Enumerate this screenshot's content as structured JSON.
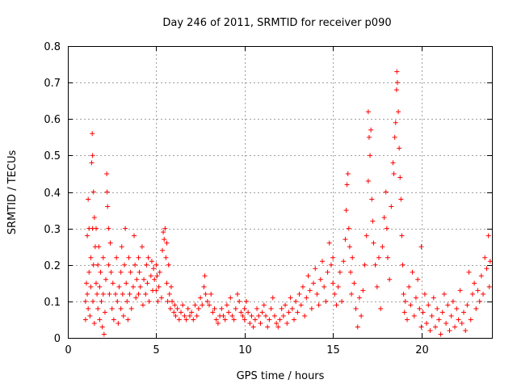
{
  "chart_data": {
    "type": "scatter",
    "title": "Day 246 of 2011, SRMTID for receiver p090",
    "xlabel": "GPS time / hours",
    "ylabel": "SRMTID / TECUs",
    "xlim": [
      0,
      24
    ],
    "ylim": [
      0,
      0.8
    ],
    "xticks": [
      "0",
      "5",
      "10",
      "15",
      "20"
    ],
    "yticks": [
      "0",
      "0.1",
      "0.2",
      "0.3",
      "0.4",
      "0.5",
      "0.6",
      "0.7",
      "0.8"
    ],
    "xtick_values": [
      0,
      5,
      10,
      15,
      20
    ],
    "ytick_values": [
      0,
      0.1,
      0.2,
      0.3,
      0.4,
      0.5,
      0.6,
      0.7,
      0.8
    ],
    "grid": true,
    "marker": "+",
    "color": "#ff0000",
    "series": [
      {
        "name": "SRMTID",
        "points": [
          [
            1.0,
            0.05
          ],
          [
            1.0,
            0.1
          ],
          [
            1.05,
            0.15
          ],
          [
            1.1,
            0.28
          ],
          [
            1.1,
            0.12
          ],
          [
            1.15,
            0.38
          ],
          [
            1.15,
            0.08
          ],
          [
            1.2,
            0.3
          ],
          [
            1.2,
            0.18
          ],
          [
            1.25,
            0.06
          ],
          [
            1.3,
            0.22
          ],
          [
            1.3,
            0.14
          ],
          [
            1.35,
            0.48
          ],
          [
            1.38,
            0.56
          ],
          [
            1.4,
            0.5
          ],
          [
            1.4,
            0.3
          ],
          [
            1.42,
            0.1
          ],
          [
            1.45,
            0.4
          ],
          [
            1.45,
            0.2
          ],
          [
            1.5,
            0.33
          ],
          [
            1.5,
            0.04
          ],
          [
            1.55,
            0.25
          ],
          [
            1.6,
            0.3
          ],
          [
            1.6,
            0.15
          ],
          [
            1.65,
            0.12
          ],
          [
            1.7,
            0.2
          ],
          [
            1.7,
            0.08
          ],
          [
            1.75,
            0.25
          ],
          [
            1.8,
            0.14
          ],
          [
            1.8,
            0.05
          ],
          [
            1.85,
            0.18
          ],
          [
            1.9,
            0.1
          ],
          [
            1.95,
            0.03
          ],
          [
            2.0,
            0.12
          ],
          [
            2.0,
            0.22
          ],
          [
            2.05,
            0.01
          ],
          [
            2.1,
            0.07
          ],
          [
            2.15,
            0.16
          ],
          [
            2.2,
            0.45
          ],
          [
            2.22,
            0.4
          ],
          [
            2.25,
            0.36
          ],
          [
            2.3,
            0.3
          ],
          [
            2.3,
            0.2
          ],
          [
            2.35,
            0.12
          ],
          [
            2.4,
            0.26
          ],
          [
            2.45,
            0.18
          ],
          [
            2.5,
            0.08
          ],
          [
            2.55,
            0.15
          ],
          [
            2.6,
            0.05
          ],
          [
            2.7,
            0.12
          ],
          [
            2.75,
            0.22
          ],
          [
            2.8,
            0.1
          ],
          [
            2.85,
            0.04
          ],
          [
            2.9,
            0.14
          ],
          [
            3.0,
            0.18
          ],
          [
            3.0,
            0.08
          ],
          [
            3.05,
            0.25
          ],
          [
            3.1,
            0.12
          ],
          [
            3.15,
            0.06
          ],
          [
            3.2,
            0.2
          ],
          [
            3.25,
            0.3
          ],
          [
            3.3,
            0.15
          ],
          [
            3.35,
            0.1
          ],
          [
            3.4,
            0.05
          ],
          [
            3.45,
            0.22
          ],
          [
            3.5,
            0.12
          ],
          [
            3.55,
            0.18
          ],
          [
            3.6,
            0.08
          ],
          [
            3.7,
            0.14
          ],
          [
            3.75,
            0.28
          ],
          [
            3.8,
            0.2
          ],
          [
            3.85,
            0.11
          ],
          [
            3.9,
            0.16
          ],
          [
            4.0,
            0.22
          ],
          [
            4.0,
            0.12
          ],
          [
            4.05,
            0.18
          ],
          [
            4.1,
            0.14
          ],
          [
            4.2,
            0.25
          ],
          [
            4.25,
            0.09
          ],
          [
            4.3,
            0.16
          ],
          [
            4.4,
            0.12
          ],
          [
            4.45,
            0.2
          ],
          [
            4.5,
            0.15
          ],
          [
            4.55,
            0.22
          ],
          [
            4.6,
            0.1
          ],
          [
            4.7,
            0.17
          ],
          [
            4.75,
            0.21
          ],
          [
            4.8,
            0.13
          ],
          [
            4.85,
            0.19
          ],
          [
            4.9,
            0.16
          ],
          [
            5.0,
            0.13
          ],
          [
            5.0,
            0.2
          ],
          [
            5.05,
            0.17
          ],
          [
            5.1,
            0.1
          ],
          [
            5.15,
            0.14
          ],
          [
            5.2,
            0.18
          ],
          [
            5.3,
            0.11
          ],
          [
            5.35,
            0.24
          ],
          [
            5.4,
            0.29
          ],
          [
            5.45,
            0.27
          ],
          [
            5.5,
            0.3
          ],
          [
            5.55,
            0.22
          ],
          [
            5.6,
            0.26
          ],
          [
            5.6,
            0.15
          ],
          [
            5.65,
            0.1
          ],
          [
            5.7,
            0.2
          ],
          [
            5.75,
            0.12
          ],
          [
            5.8,
            0.08
          ],
          [
            5.85,
            0.14
          ],
          [
            5.9,
            0.1
          ],
          [
            6.0,
            0.07
          ],
          [
            6.05,
            0.09
          ],
          [
            6.1,
            0.06
          ],
          [
            6.2,
            0.08
          ],
          [
            6.3,
            0.05
          ],
          [
            6.4,
            0.07
          ],
          [
            6.5,
            0.09
          ],
          [
            6.6,
            0.06
          ],
          [
            6.7,
            0.05
          ],
          [
            6.8,
            0.08
          ],
          [
            6.9,
            0.06
          ],
          [
            7.0,
            0.07
          ],
          [
            7.1,
            0.05
          ],
          [
            7.2,
            0.09
          ],
          [
            7.3,
            0.06
          ],
          [
            7.4,
            0.08
          ],
          [
            7.5,
            0.11
          ],
          [
            7.6,
            0.09
          ],
          [
            7.7,
            0.14
          ],
          [
            7.75,
            0.17
          ],
          [
            7.8,
            0.12
          ],
          [
            7.9,
            0.1
          ],
          [
            8.0,
            0.09
          ],
          [
            8.1,
            0.12
          ],
          [
            8.2,
            0.07
          ],
          [
            8.3,
            0.08
          ],
          [
            8.4,
            0.05
          ],
          [
            8.5,
            0.04
          ],
          [
            8.6,
            0.06
          ],
          [
            8.7,
            0.08
          ],
          [
            8.8,
            0.06
          ],
          [
            8.9,
            0.05
          ],
          [
            9.0,
            0.09
          ],
          [
            9.1,
            0.07
          ],
          [
            9.2,
            0.11
          ],
          [
            9.3,
            0.06
          ],
          [
            9.4,
            0.05
          ],
          [
            9.5,
            0.08
          ],
          [
            9.6,
            0.12
          ],
          [
            9.7,
            0.1
          ],
          [
            9.8,
            0.07
          ],
          [
            9.9,
            0.06
          ],
          [
            10.0,
            0.05
          ],
          [
            10.0,
            0.08
          ],
          [
            10.1,
            0.1
          ],
          [
            10.2,
            0.07
          ],
          [
            10.3,
            0.04
          ],
          [
            10.4,
            0.06
          ],
          [
            10.5,
            0.03
          ],
          [
            10.6,
            0.05
          ],
          [
            10.7,
            0.08
          ],
          [
            10.8,
            0.06
          ],
          [
            10.9,
            0.04
          ],
          [
            11.0,
            0.07
          ],
          [
            11.1,
            0.09
          ],
          [
            11.2,
            0.06
          ],
          [
            11.3,
            0.03
          ],
          [
            11.4,
            0.05
          ],
          [
            11.5,
            0.08
          ],
          [
            11.6,
            0.11
          ],
          [
            11.7,
            0.06
          ],
          [
            11.8,
            0.04
          ],
          [
            11.9,
            0.03
          ],
          [
            12.0,
            0.05
          ],
          [
            12.1,
            0.08
          ],
          [
            12.2,
            0.06
          ],
          [
            12.3,
            0.09
          ],
          [
            12.4,
            0.04
          ],
          [
            12.5,
            0.07
          ],
          [
            12.6,
            0.11
          ],
          [
            12.7,
            0.08
          ],
          [
            12.8,
            0.05
          ],
          [
            12.9,
            0.1
          ],
          [
            13.0,
            0.07
          ],
          [
            13.1,
            0.12
          ],
          [
            13.2,
            0.09
          ],
          [
            13.3,
            0.14
          ],
          [
            13.4,
            0.06
          ],
          [
            13.5,
            0.11
          ],
          [
            13.6,
            0.17
          ],
          [
            13.7,
            0.13
          ],
          [
            13.8,
            0.08
          ],
          [
            13.9,
            0.15
          ],
          [
            14.0,
            0.19
          ],
          [
            14.1,
            0.12
          ],
          [
            14.2,
            0.09
          ],
          [
            14.3,
            0.16
          ],
          [
            14.4,
            0.21
          ],
          [
            14.5,
            0.14
          ],
          [
            14.6,
            0.1
          ],
          [
            14.7,
            0.18
          ],
          [
            14.8,
            0.26
          ],
          [
            14.9,
            0.2
          ],
          [
            15.0,
            0.15
          ],
          [
            15.0,
            0.22
          ],
          [
            15.1,
            0.12
          ],
          [
            15.2,
            0.09
          ],
          [
            15.3,
            0.14
          ],
          [
            15.4,
            0.18
          ],
          [
            15.5,
            0.1
          ],
          [
            15.6,
            0.21
          ],
          [
            15.7,
            0.27
          ],
          [
            15.75,
            0.35
          ],
          [
            15.8,
            0.42
          ],
          [
            15.85,
            0.45
          ],
          [
            15.9,
            0.3
          ],
          [
            15.95,
            0.25
          ],
          [
            16.0,
            0.18
          ],
          [
            16.05,
            0.12
          ],
          [
            16.1,
            0.22
          ],
          [
            16.2,
            0.15
          ],
          [
            16.3,
            0.08
          ],
          [
            16.4,
            0.03
          ],
          [
            16.5,
            0.11
          ],
          [
            16.6,
            0.06
          ],
          [
            16.7,
            0.13
          ],
          [
            16.8,
            0.2
          ],
          [
            16.9,
            0.28
          ],
          [
            17.0,
            0.43
          ],
          [
            17.0,
            0.62
          ],
          [
            17.05,
            0.55
          ],
          [
            17.1,
            0.5
          ],
          [
            17.15,
            0.57
          ],
          [
            17.2,
            0.38
          ],
          [
            17.25,
            0.32
          ],
          [
            17.3,
            0.26
          ],
          [
            17.4,
            0.2
          ],
          [
            17.5,
            0.14
          ],
          [
            17.6,
            0.22
          ],
          [
            17.7,
            0.08
          ],
          [
            17.8,
            0.25
          ],
          [
            17.9,
            0.33
          ],
          [
            18.0,
            0.4
          ],
          [
            18.05,
            0.3
          ],
          [
            18.1,
            0.22
          ],
          [
            18.2,
            0.16
          ],
          [
            18.3,
            0.36
          ],
          [
            18.4,
            0.48
          ],
          [
            18.45,
            0.45
          ],
          [
            18.5,
            0.55
          ],
          [
            18.55,
            0.59
          ],
          [
            18.6,
            0.68
          ],
          [
            18.62,
            0.73
          ],
          [
            18.65,
            0.7
          ],
          [
            18.7,
            0.62
          ],
          [
            18.75,
            0.52
          ],
          [
            18.8,
            0.44
          ],
          [
            18.85,
            0.38
          ],
          [
            18.9,
            0.28
          ],
          [
            18.95,
            0.2
          ],
          [
            19.0,
            0.12
          ],
          [
            19.05,
            0.07
          ],
          [
            19.1,
            0.1
          ],
          [
            19.2,
            0.05
          ],
          [
            19.3,
            0.14
          ],
          [
            19.4,
            0.09
          ],
          [
            19.5,
            0.18
          ],
          [
            19.6,
            0.06
          ],
          [
            19.7,
            0.11
          ],
          [
            19.8,
            0.16
          ],
          [
            19.9,
            0.08
          ],
          [
            20.0,
            0.25
          ],
          [
            20.0,
            0.03
          ],
          [
            20.1,
            0.07
          ],
          [
            20.2,
            0.12
          ],
          [
            20.3,
            0.04
          ],
          [
            20.4,
            0.09
          ],
          [
            20.5,
            0.02
          ],
          [
            20.6,
            0.06
          ],
          [
            20.7,
            0.11
          ],
          [
            20.8,
            0.03
          ],
          [
            20.9,
            0.08
          ],
          [
            21.0,
            0.05
          ],
          [
            21.1,
            0.01
          ],
          [
            21.2,
            0.07
          ],
          [
            21.3,
            0.12
          ],
          [
            21.4,
            0.04
          ],
          [
            21.5,
            0.09
          ],
          [
            21.6,
            0.02
          ],
          [
            21.7,
            0.06
          ],
          [
            21.8,
            0.1
          ],
          [
            21.9,
            0.03
          ],
          [
            22.0,
            0.08
          ],
          [
            22.1,
            0.05
          ],
          [
            22.2,
            0.13
          ],
          [
            22.3,
            0.04
          ],
          [
            22.4,
            0.07
          ],
          [
            22.5,
            0.02
          ],
          [
            22.6,
            0.09
          ],
          [
            22.7,
            0.18
          ],
          [
            22.8,
            0.05
          ],
          [
            22.9,
            0.12
          ],
          [
            23.0,
            0.15
          ],
          [
            23.1,
            0.08
          ],
          [
            23.2,
            0.13
          ],
          [
            23.3,
            0.1
          ],
          [
            23.4,
            0.17
          ],
          [
            23.5,
            0.12
          ],
          [
            23.6,
            0.22
          ],
          [
            23.7,
            0.19
          ],
          [
            23.8,
            0.28
          ],
          [
            23.85,
            0.14
          ],
          [
            23.9,
            0.21
          ]
        ]
      }
    ]
  }
}
